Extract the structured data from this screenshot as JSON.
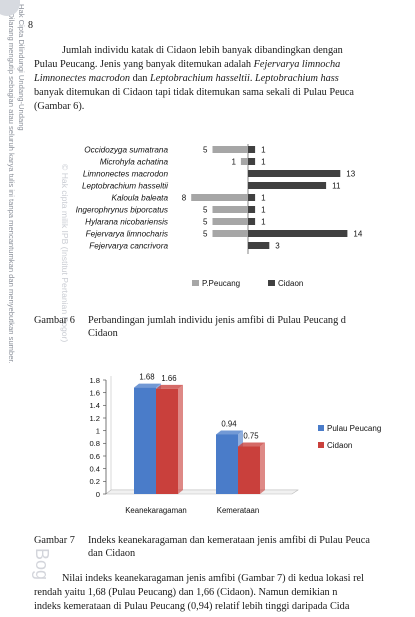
{
  "page_number": "8",
  "paragraph1": {
    "line1": "Jumlah individu katak di Cidaon lebih banyak dibandingkan dengan",
    "line2_a": "Pulau Peucang. Jenis yang banyak ditemukan adalah ",
    "line2_b": "Fejervarya limnocha",
    "line3_a": "Limnonectes macrodon",
    "line3_b": " dan ",
    "line3_c": "Leptobrachium hasseltii",
    "line3_d": ". ",
    "line3_e": "Leptobrachium hass",
    "line4": "banyak ditemukan di Cidaon tapi tidak ditemukan sama sekali di Pulau Peuca",
    "line5": "(Gambar 6)."
  },
  "figure6": {
    "caption_label": "Gambar 6",
    "caption_line1": "Perbandingan jumlah individu jenis amfibi di Pulau Peucang d",
    "caption_line2": "Cidaon"
  },
  "figure7": {
    "caption_label": "Gambar 7",
    "caption_line1": "Indeks keanekaragaman dan kemerataan jenis amfibi di Pulau Peuca",
    "caption_line2": "dan Cidaon"
  },
  "paragraph2": {
    "line1": "Nilai indeks keanekaragaman jenis amfibi (Gambar 7) di kedua lokasi rel",
    "line2": "rendah yaitu 1,68 (Pulau Peucang) dan 1,66 (Cidaon). Namun demikian n",
    "line3": "indeks kemerataan di Pulau Peucang (0,94) relatif lebih tinggi daripada Cida"
  },
  "sidebar": {
    "line1": "Hak Cipta Dilindungi Undang-Undang",
    "line2": "1. Dilarang mengutip sebagian atau seluruh karya tulis ini tanpa mencantumkan dan menyebutkan sumber."
  },
  "watermark": {
    "text": "© Hak cipta milik IPB (Institut Pertanian Bogor)",
    "bottom_text": "Bog"
  },
  "colors": {
    "peucang_bar": "#a6a6a6",
    "cidaon_bar": "#404040",
    "pulau_peucang_3d": "#4a7cc9",
    "cidaon_3d": "#c9403c"
  },
  "chart_data": [
    {
      "type": "bar",
      "orientation": "horizontal-diverging",
      "categories": [
        "Occidozyga sumatrana",
        "Microhyla achatina",
        "Limnonectes macrodon",
        "Leptobrachium hasseltii",
        "Kaloula baleata",
        "Ingerophrynus biporcatus",
        "Hylarana nicobariensis",
        "Fejervarya limnocharis",
        "Fejervarya cancrivora"
      ],
      "series": [
        {
          "name": "P.Peucang",
          "values": [
            5,
            1,
            null,
            null,
            8,
            5,
            5,
            5,
            null
          ],
          "labels": [
            "5",
            "1",
            "",
            "",
            "8",
            "5",
            "5",
            "5",
            ""
          ]
        },
        {
          "name": "Cidaon",
          "values": [
            1,
            1,
            13,
            11,
            1,
            1,
            1,
            14,
            3
          ],
          "labels": [
            "1",
            "1",
            "13",
            "11",
            "1",
            "1",
            "1",
            "14",
            "3"
          ]
        }
      ],
      "legend_position": "bottom",
      "grid": false
    },
    {
      "type": "bar",
      "style": "3d-clustered",
      "categories": [
        "Keanekaragaman",
        "Kemerataan"
      ],
      "series": [
        {
          "name": "Pulau Peucang",
          "values": [
            1.68,
            0.94
          ],
          "labels": [
            "1.68",
            "0.94"
          ]
        },
        {
          "name": "Cidaon",
          "values": [
            1.66,
            0.75
          ],
          "labels": [
            "1.66",
            "0.75"
          ]
        }
      ],
      "yticks": [
        "0",
        "0.2",
        "0.4",
        "0.6",
        "0.8",
        "1",
        "1.2",
        "1.4",
        "1.6",
        "1.8"
      ],
      "ylim": [
        0,
        1.8
      ],
      "legend_position": "right",
      "grid": false
    }
  ]
}
